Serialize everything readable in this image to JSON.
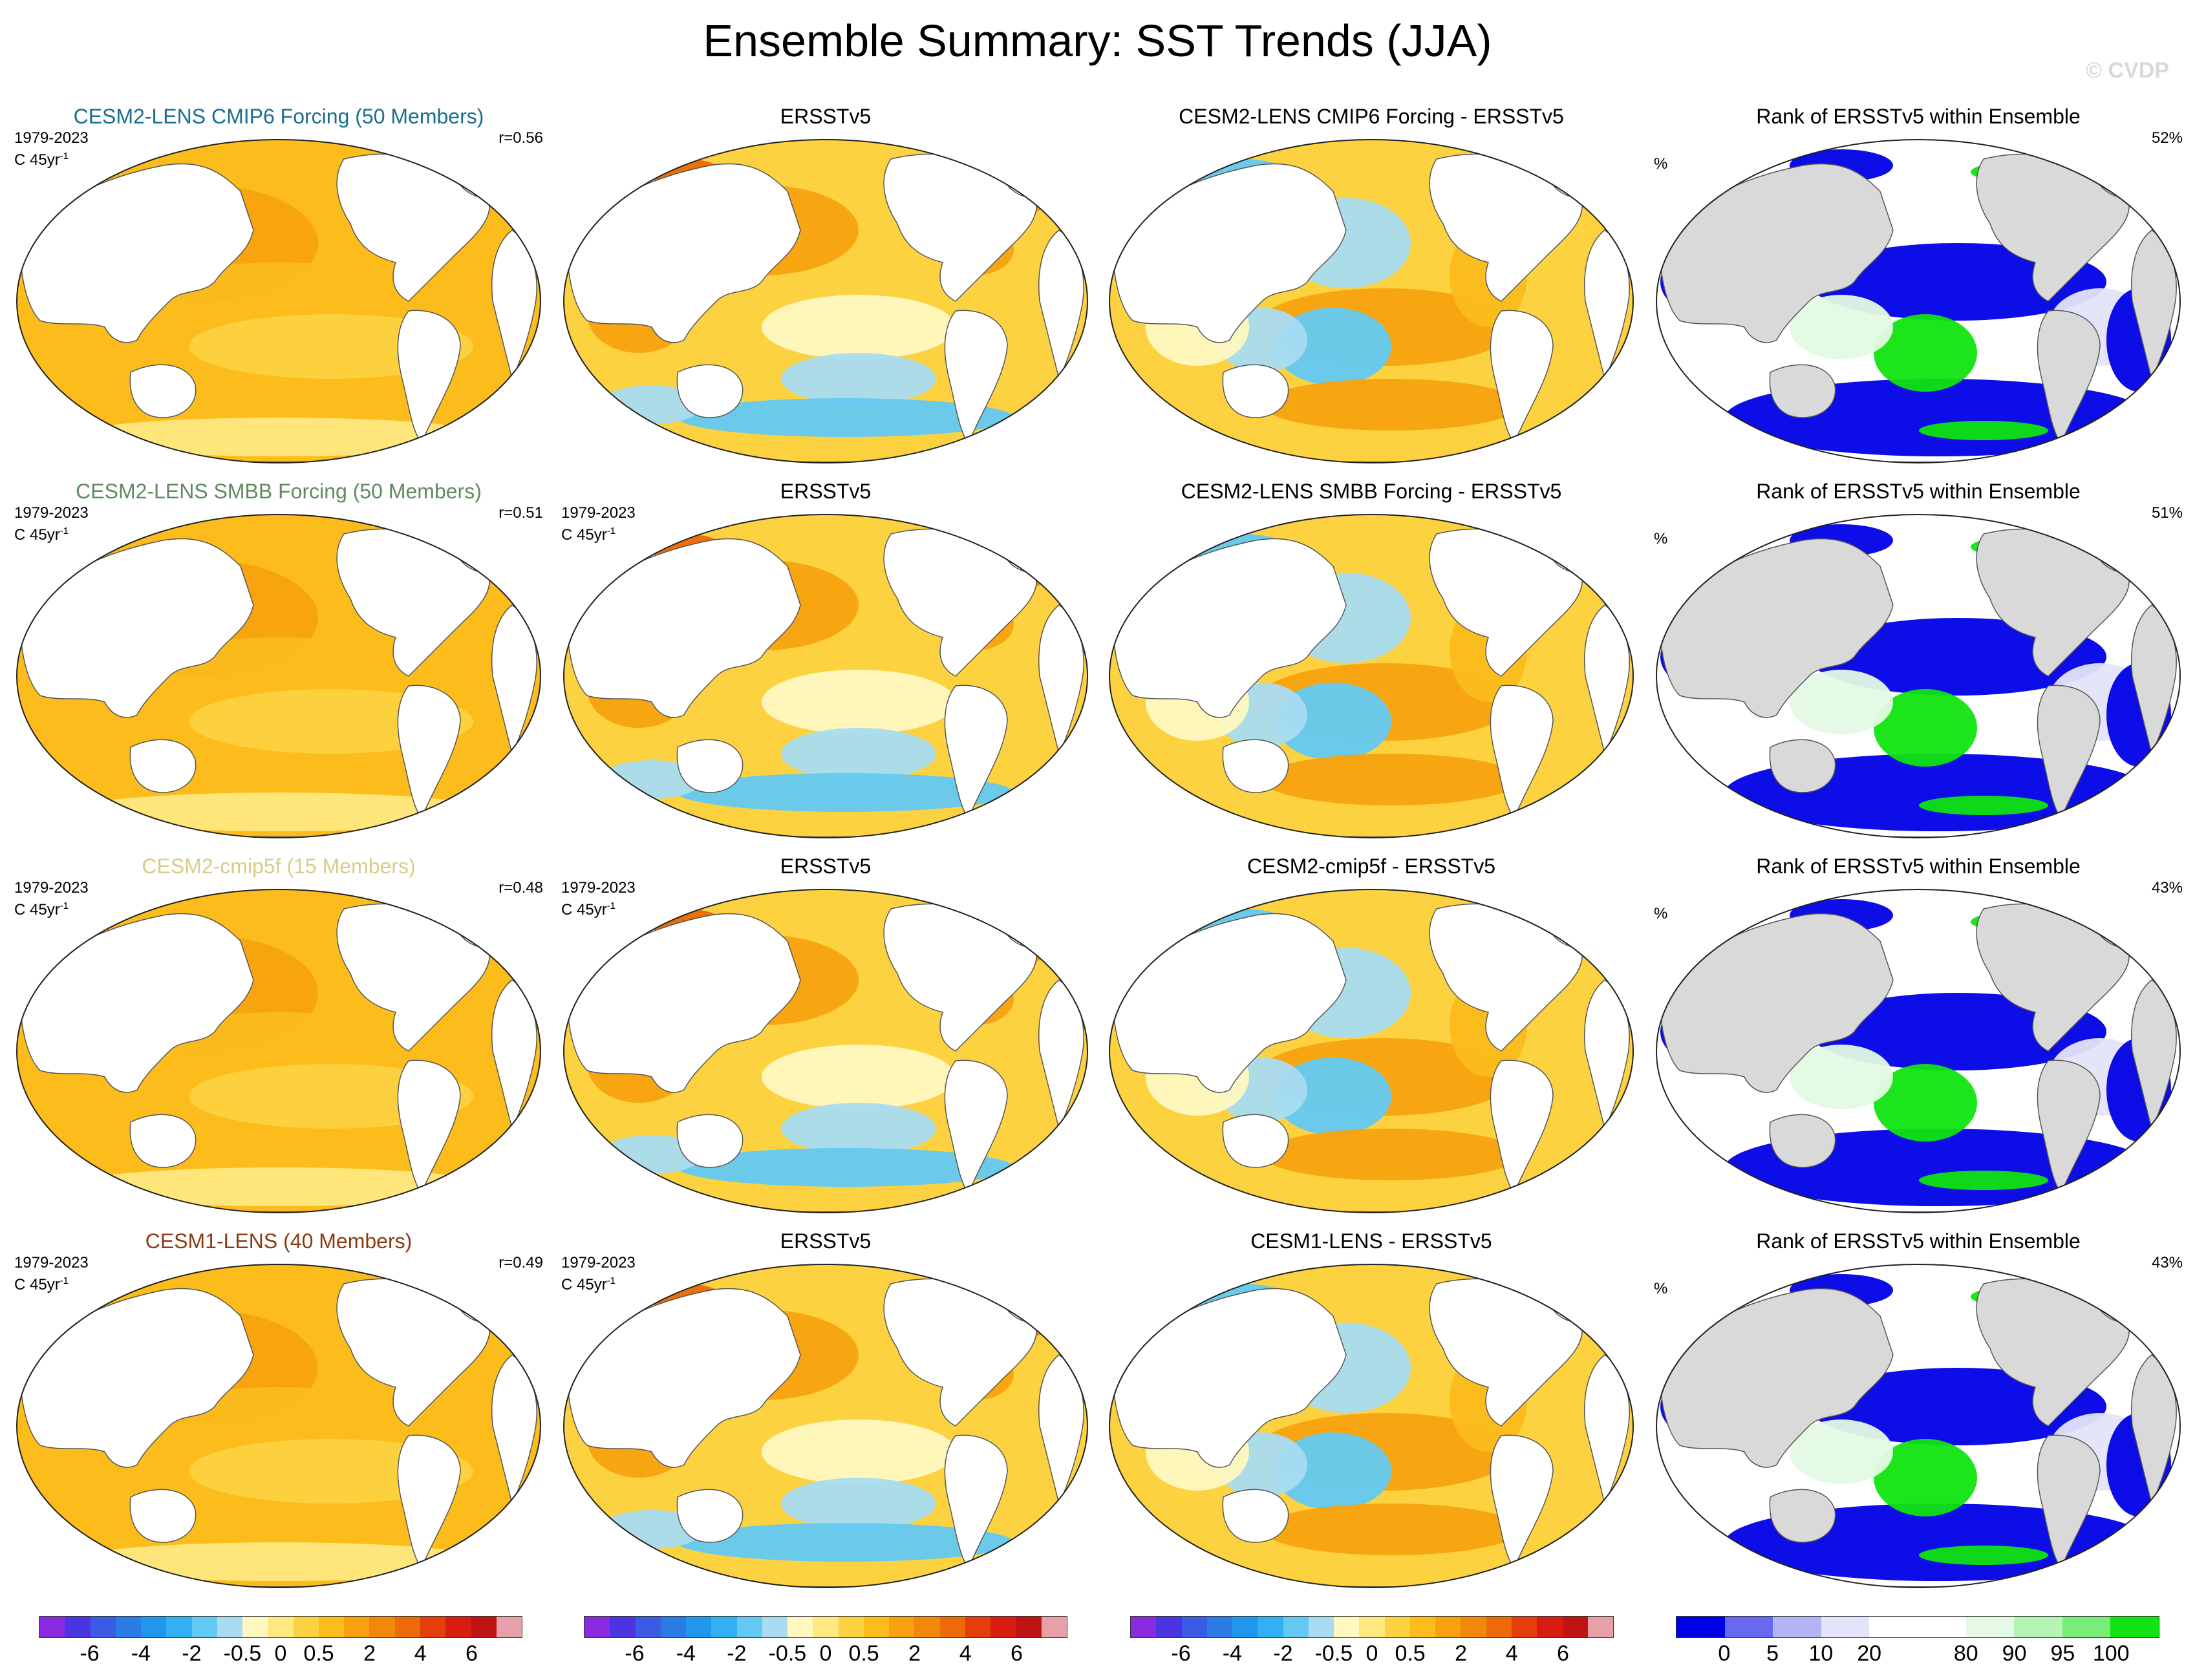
{
  "title": "Ensemble Summary: SST Trends (JJA)",
  "watermark": "© CVDP",
  "colors": {
    "land": "#ffffff",
    "land_rank": "#d9d9d9",
    "coast": "#555555",
    "model_title_colors": [
      "#1a6e8e",
      "#5f8a5f",
      "#d8cd86",
      "#8b3a13"
    ]
  },
  "rows": [
    {
      "model_title": "CESM2-LENS CMIP6 Forcing (50 Members)",
      "period": "1979-2023",
      "units_text": "C 45yr",
      "units_sup": "-1",
      "pattern_corr": "r=0.56",
      "obs_title": "ERSSTv5",
      "diff_title": "CESM2-LENS CMIP6 Forcing - ERSSTv5",
      "rank_title": "Rank of ERSSTv5 within Ensemble",
      "rank_unit": "%",
      "rank_pct": "52%",
      "show_obs_period": false
    },
    {
      "model_title": "CESM2-LENS SMBB Forcing (50 Members)",
      "period": "1979-2023",
      "units_text": "C 45yr",
      "units_sup": "-1",
      "pattern_corr": "r=0.51",
      "obs_title": "ERSSTv5",
      "diff_title": "CESM2-LENS SMBB Forcing - ERSSTv5",
      "rank_title": "Rank of ERSSTv5 within Ensemble",
      "rank_unit": "%",
      "rank_pct": "51%",
      "show_obs_period": true
    },
    {
      "model_title": "CESM2-cmip5f (15 Members)",
      "period": "1979-2023",
      "units_text": "C 45yr",
      "units_sup": "-1",
      "pattern_corr": "r=0.48",
      "obs_title": "ERSSTv5",
      "diff_title": "CESM2-cmip5f - ERSSTv5",
      "rank_title": "Rank of ERSSTv5 within Ensemble",
      "rank_unit": "%",
      "rank_pct": "43%",
      "show_obs_period": true
    },
    {
      "model_title": "CESM1-LENS (40 Members)",
      "period": "1979-2023",
      "units_text": "C 45yr",
      "units_sup": "-1",
      "pattern_corr": "r=0.49",
      "obs_title": "ERSSTv5",
      "diff_title": "CESM1-LENS - ERSSTv5",
      "rank_title": "Rank of ERSSTv5 within Ensemble",
      "rank_unit": "%",
      "rank_pct": "43%",
      "show_obs_period": true
    }
  ],
  "colorbars": {
    "trend": {
      "colors": [
        "#8a2be2",
        "#4c34e0",
        "#3b5be6",
        "#2b7be6",
        "#1e97ec",
        "#30b2f2",
        "#63c9f2",
        "#a9dcf2",
        "#fff8c0",
        "#ffe880",
        "#fdd240",
        "#fbbc1c",
        "#f7a20e",
        "#f28808",
        "#ed6a08",
        "#e43e0c",
        "#d81c10",
        "#c01414",
        "#e8a0a8"
      ],
      "labels": [
        "-6",
        "-4",
        "-2",
        "-0.5",
        "0",
        "0.5",
        "2",
        "4",
        "6"
      ],
      "label_positions": [
        0.105,
        0.211,
        0.316,
        0.421,
        0.5,
        0.579,
        0.684,
        0.789,
        0.895
      ]
    },
    "rank": {
      "colors": [
        "#0000e6",
        "#6868f0",
        "#b4b4f4",
        "#e4e4fa",
        "#ffffff",
        "#ffffff",
        "#e4fae4",
        "#b4f4b4",
        "#78ee78",
        "#10e410"
      ],
      "labels": [
        "0",
        "5",
        "10",
        "20",
        "80",
        "90",
        "95",
        "100"
      ],
      "label_positions": [
        0.1,
        0.2,
        0.3,
        0.4,
        0.6,
        0.7,
        0.8,
        0.9
      ]
    }
  }
}
